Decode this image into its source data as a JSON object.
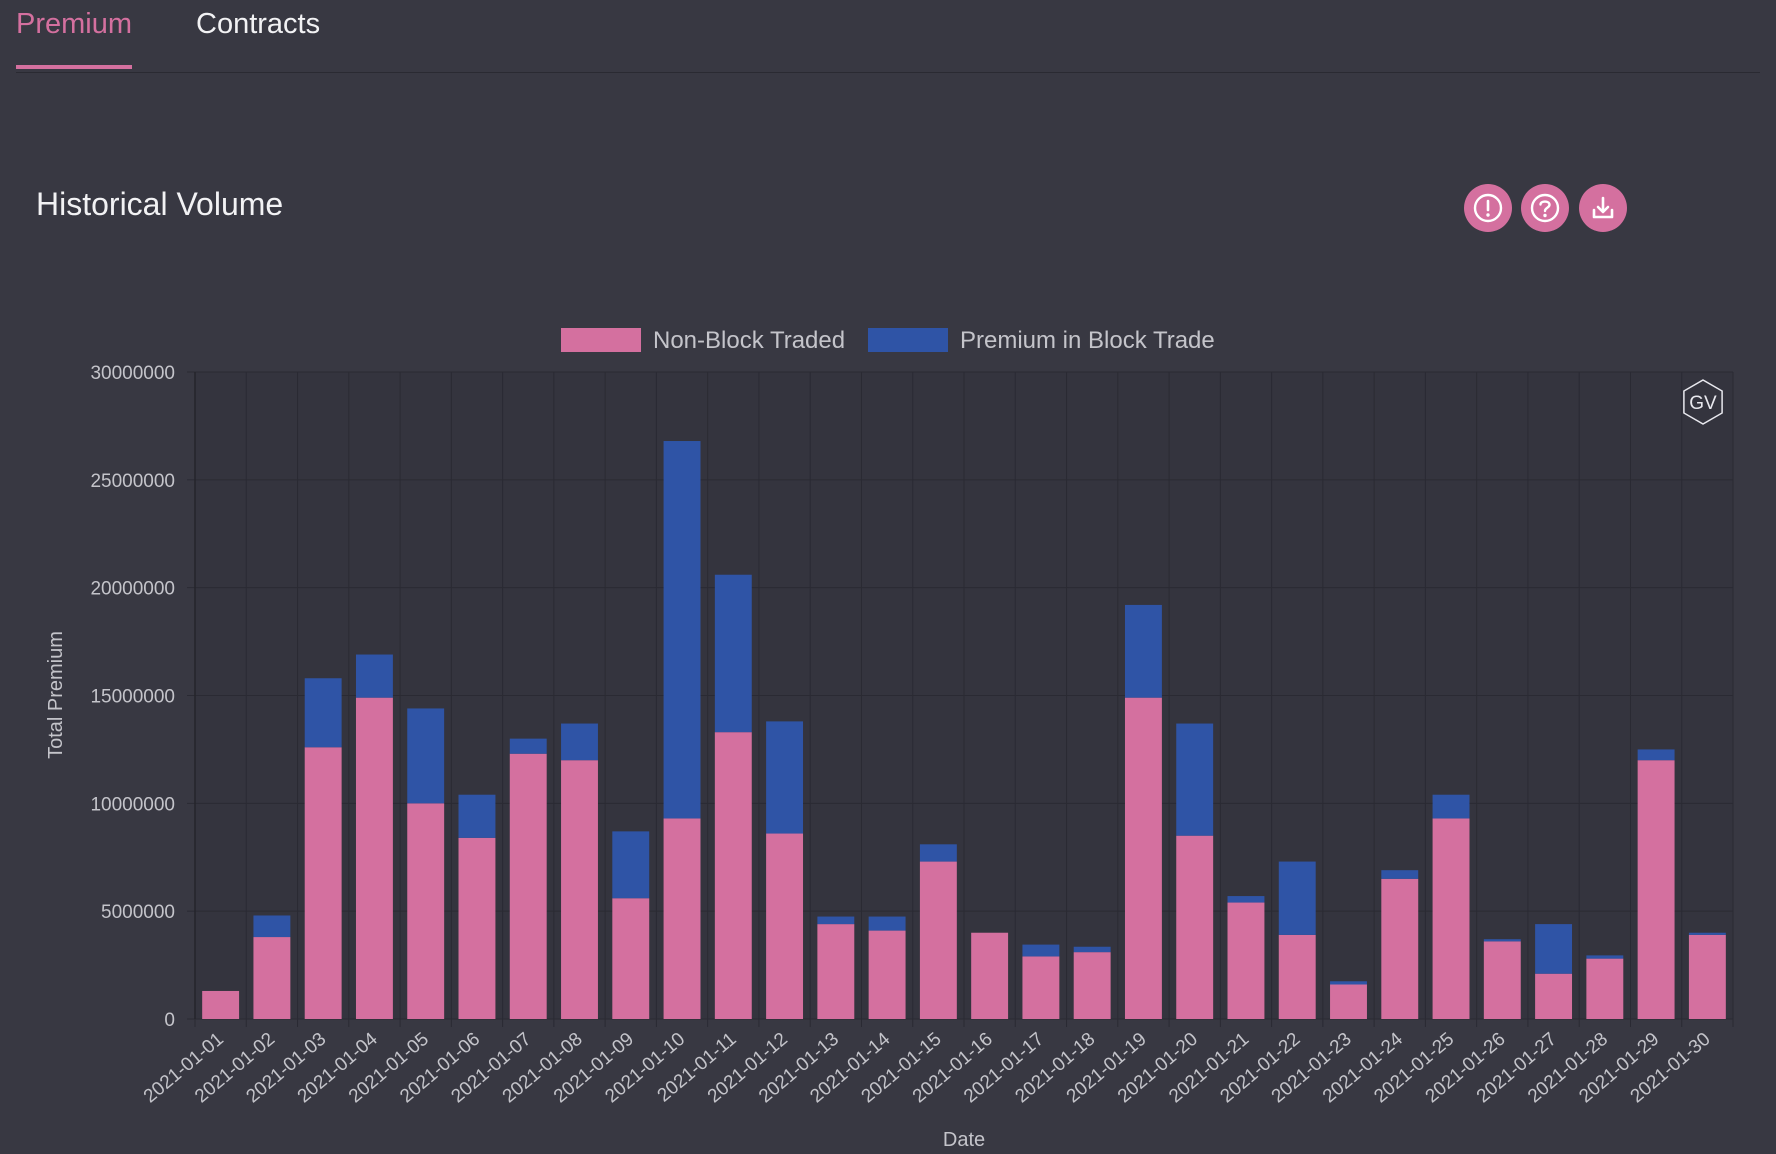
{
  "tabs": [
    {
      "label": "Premium",
      "active": true
    },
    {
      "label": "Contracts",
      "active": false
    }
  ],
  "panel": {
    "title": "Historical Volume",
    "actions": [
      {
        "icon": "alert-circle-icon",
        "name": "info-button"
      },
      {
        "icon": "help-circle-icon",
        "name": "help-button"
      },
      {
        "icon": "download-icon",
        "name": "download-button"
      }
    ],
    "watermark": "GV"
  },
  "colors": {
    "accent": "#d4709f",
    "non_block": "#d4709f",
    "block": "#2f54a6",
    "background": "#383842"
  },
  "chart_data": {
    "type": "bar",
    "stacked": true,
    "xlabel": "Date",
    "ylabel": "Total Premium",
    "ylim": [
      0,
      30000000
    ],
    "yticks": [
      "0",
      "5000000",
      "10000000",
      "15000000",
      "20000000",
      "25000000",
      "30000000"
    ],
    "legend_position": "top-center",
    "grid": true,
    "categories": [
      "2021-01-01",
      "2021-01-02",
      "2021-01-03",
      "2021-01-04",
      "2021-01-05",
      "2021-01-06",
      "2021-01-07",
      "2021-01-08",
      "2021-01-09",
      "2021-01-10",
      "2021-01-11",
      "2021-01-12",
      "2021-01-13",
      "2021-01-14",
      "2021-01-15",
      "2021-01-16",
      "2021-01-17",
      "2021-01-18",
      "2021-01-19",
      "2021-01-20",
      "2021-01-21",
      "2021-01-22",
      "2021-01-23",
      "2021-01-24",
      "2021-01-25",
      "2021-01-26",
      "2021-01-27",
      "2021-01-28",
      "2021-01-29",
      "2021-01-30"
    ],
    "series": [
      {
        "name": "Non-Block Traded",
        "color": "#d4709f",
        "values": [
          1300000,
          3800000,
          12600000,
          14900000,
          10000000,
          8400000,
          12300000,
          12000000,
          5600000,
          9300000,
          13300000,
          8600000,
          4400000,
          4100000,
          7300000,
          4000000,
          2900000,
          3100000,
          14900000,
          8500000,
          5400000,
          3900000,
          1600000,
          6500000,
          9300000,
          3600000,
          2100000,
          2800000,
          12000000,
          3900000
        ]
      },
      {
        "name": "Premium in Block Trade",
        "color": "#2f54a6",
        "values": [
          0,
          1000000,
          3200000,
          2000000,
          4400000,
          2000000,
          700000,
          1700000,
          3100000,
          17500000,
          7300000,
          5200000,
          350000,
          650000,
          800000,
          0,
          550000,
          250000,
          4300000,
          5200000,
          300000,
          3400000,
          150000,
          400000,
          1100000,
          100000,
          2300000,
          150000,
          500000,
          100000
        ]
      }
    ]
  }
}
